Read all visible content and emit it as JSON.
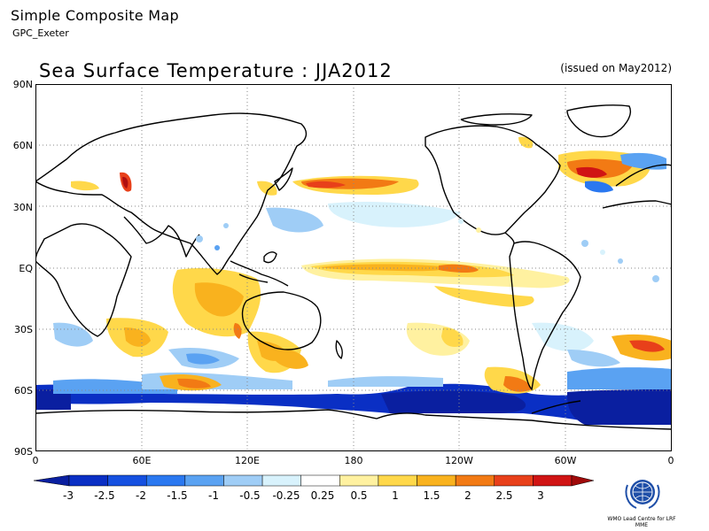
{
  "header": {
    "title": "Simple Composite Map",
    "subtitle": "GPC_Exeter"
  },
  "map": {
    "title": "Sea Surface Temperature : JJA2012",
    "issued": "(issued on May2012)",
    "lat_labels": [
      "90N",
      "60N",
      "30N",
      "EQ",
      "30S",
      "60S",
      "90S"
    ],
    "lon_labels": [
      "0",
      "60E",
      "120E",
      "180",
      "120W",
      "60W",
      "0"
    ],
    "grid_lines": "dotted",
    "coastline_color": "#000000"
  },
  "colorbar": {
    "labels": [
      "-3",
      "-2.5",
      "-2",
      "-1.5",
      "-1",
      "-0.5",
      "-0.25",
      "0.25",
      "0.5",
      "1",
      "1.5",
      "2",
      "2.5",
      "3"
    ],
    "colors": [
      "#0a2fc4",
      "#1550e0",
      "#2a78f0",
      "#5aa2f2",
      "#9fcdf6",
      "#d8f2fc",
      "#ffffff",
      "#fff1a0",
      "#ffd84a",
      "#f9b21e",
      "#f27a14",
      "#e8401a",
      "#d01414",
      "#b01010"
    ],
    "under_color": "#0a1fa0",
    "over_color": "#a00a0a"
  },
  "logo": {
    "text": "WMO Lead Centre for LRF MME",
    "icon": "wmo-emblem-icon"
  }
}
